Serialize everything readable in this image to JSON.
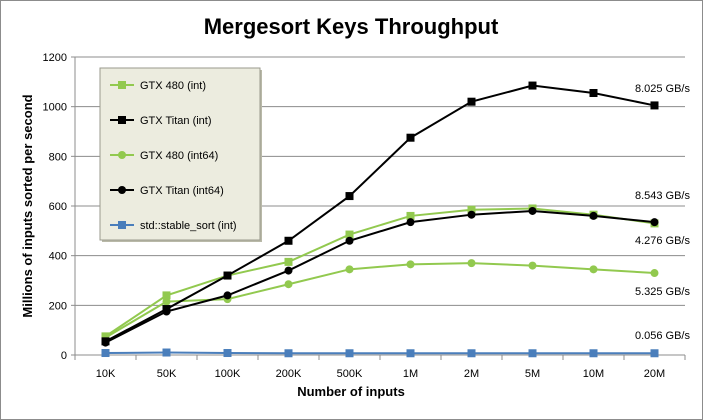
{
  "chart_data": {
    "type": "line",
    "title": "Mergesort Keys Throughput",
    "xlabel": "Number of inputs",
    "ylabel": "Millions of inputs  sorted per second",
    "categories": [
      "10K",
      "50K",
      "100K",
      "200K",
      "500K",
      "1M",
      "2M",
      "5M",
      "10M",
      "20M"
    ],
    "ylim": [
      0,
      1200
    ],
    "yticks": [
      0,
      200,
      400,
      600,
      800,
      1000,
      1200
    ],
    "grid": true,
    "legend_position": "top-left",
    "series": [
      {
        "name": "GTX 480 (int)",
        "color": "#92C94F",
        "marker": "square",
        "values": [
          75,
          240,
          320,
          375,
          485,
          560,
          585,
          590,
          565,
          530
        ]
      },
      {
        "name": "GTX Titan (int)",
        "color": "#000000",
        "marker": "square",
        "values": [
          55,
          185,
          320,
          460,
          640,
          875,
          1020,
          1085,
          1055,
          1005
        ]
      },
      {
        "name": "GTX 480 (int64)",
        "color": "#92C94F",
        "marker": "circle",
        "values": [
          70,
          215,
          225,
          285,
          345,
          365,
          370,
          360,
          345,
          330
        ]
      },
      {
        "name": "GTX Titan (int64)",
        "color": "#000000",
        "marker": "circle",
        "values": [
          50,
          175,
          240,
          340,
          460,
          535,
          565,
          580,
          560,
          535
        ]
      },
      {
        "name": "std::stable_sort (int)",
        "color": "#4A7EBB",
        "marker": "square",
        "values": [
          8,
          10,
          8,
          7,
          7,
          7,
          7,
          7,
          7,
          7
        ]
      }
    ],
    "annotations": [
      "8.025 GB/s",
      "8.543 GB/s",
      "4.276 GB/s",
      "5.325 GB/s",
      "0.056 GB/s"
    ]
  }
}
